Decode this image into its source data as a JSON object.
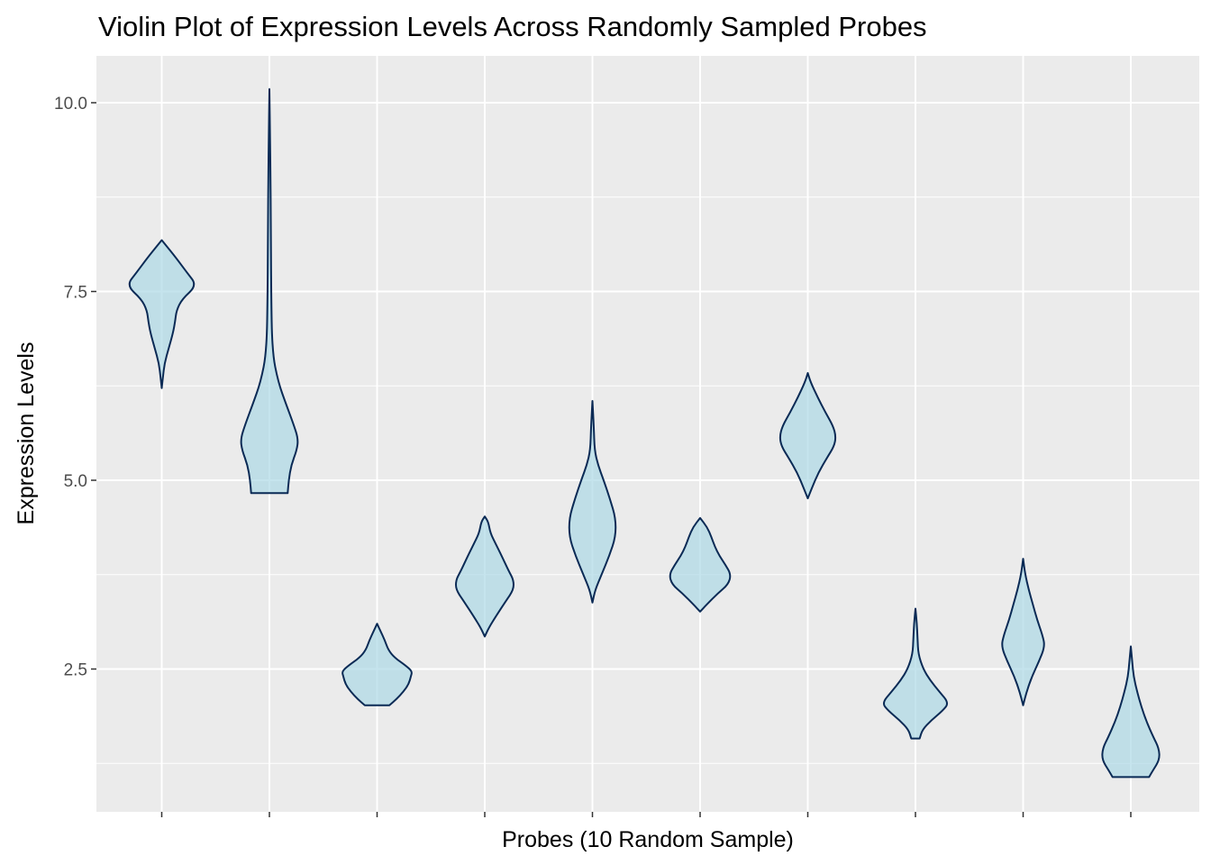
{
  "chart_data": {
    "type": "violin",
    "title": "Violin Plot of Expression Levels Across Randomly Sampled Probes",
    "xlabel": "Probes (10 Random Sample)",
    "ylabel": "Expression Levels",
    "x_tick_labels_shown": false,
    "ylim": [
      0.8,
      10.6
    ],
    "y_ticks": [
      2.5,
      5.0,
      7.5,
      10.0
    ],
    "y_tick_labels": [
      "2.5",
      "5.0",
      "7.5",
      "10.0"
    ],
    "y_minor_ticks": [
      1.25,
      3.75,
      6.25,
      8.75
    ],
    "grid": true,
    "legend": "none",
    "colors": {
      "panel_background": "#EBEBEB",
      "grid": "#FFFFFF",
      "violin_fill": "#ADD8E6",
      "violin_fill_opacity": 0.7,
      "violin_outline": "#0A2A55"
    },
    "violins": [
      {
        "index": 1,
        "min": 6.22,
        "max": 8.18,
        "profile": [
          [
            6.22,
            0.0
          ],
          [
            6.35,
            0.03
          ],
          [
            6.55,
            0.08
          ],
          [
            6.75,
            0.2
          ],
          [
            6.95,
            0.32
          ],
          [
            7.1,
            0.38
          ],
          [
            7.25,
            0.42
          ],
          [
            7.4,
            0.58
          ],
          [
            7.58,
            1.0
          ],
          [
            7.75,
            0.72
          ],
          [
            7.95,
            0.4
          ],
          [
            8.1,
            0.14
          ],
          [
            8.18,
            0.0
          ]
        ]
      },
      {
        "index": 2,
        "min": 4.83,
        "max": 10.18,
        "profile": [
          [
            4.83,
            0.52
          ],
          [
            5.0,
            0.55
          ],
          [
            5.2,
            0.62
          ],
          [
            5.4,
            0.78
          ],
          [
            5.55,
            0.82
          ],
          [
            5.75,
            0.68
          ],
          [
            6.0,
            0.48
          ],
          [
            6.3,
            0.25
          ],
          [
            6.7,
            0.08
          ],
          [
            7.5,
            0.05
          ],
          [
            8.5,
            0.04
          ],
          [
            9.0,
            0.03
          ],
          [
            9.5,
            0.02
          ],
          [
            10.18,
            0.0
          ]
        ]
      },
      {
        "index": 3,
        "min": 2.02,
        "max": 3.1,
        "profile": [
          [
            2.02,
            0.35
          ],
          [
            2.1,
            0.55
          ],
          [
            2.2,
            0.75
          ],
          [
            2.3,
            0.9
          ],
          [
            2.4,
            0.96
          ],
          [
            2.47,
            1.0
          ],
          [
            2.55,
            0.8
          ],
          [
            2.65,
            0.5
          ],
          [
            2.75,
            0.32
          ],
          [
            2.88,
            0.22
          ],
          [
            3.0,
            0.1
          ],
          [
            3.1,
            0.0
          ]
        ]
      },
      {
        "index": 4,
        "min": 2.93,
        "max": 4.52,
        "profile": [
          [
            2.93,
            0.0
          ],
          [
            3.05,
            0.12
          ],
          [
            3.2,
            0.32
          ],
          [
            3.4,
            0.6
          ],
          [
            3.55,
            0.82
          ],
          [
            3.68,
            0.82
          ],
          [
            3.8,
            0.68
          ],
          [
            4.0,
            0.48
          ],
          [
            4.15,
            0.32
          ],
          [
            4.3,
            0.16
          ],
          [
            4.45,
            0.1
          ],
          [
            4.52,
            0.0
          ]
        ]
      },
      {
        "index": 5,
        "min": 3.38,
        "max": 6.05,
        "profile": [
          [
            3.38,
            0.0
          ],
          [
            3.55,
            0.08
          ],
          [
            3.75,
            0.26
          ],
          [
            4.0,
            0.48
          ],
          [
            4.25,
            0.66
          ],
          [
            4.5,
            0.66
          ],
          [
            4.75,
            0.5
          ],
          [
            5.0,
            0.32
          ],
          [
            5.2,
            0.16
          ],
          [
            5.4,
            0.06
          ],
          [
            5.7,
            0.04
          ],
          [
            6.05,
            0.0
          ]
        ]
      },
      {
        "index": 6,
        "min": 3.26,
        "max": 4.5,
        "profile": [
          [
            3.26,
            0.0
          ],
          [
            3.35,
            0.18
          ],
          [
            3.5,
            0.5
          ],
          [
            3.62,
            0.8
          ],
          [
            3.75,
            0.88
          ],
          [
            3.88,
            0.72
          ],
          [
            4.0,
            0.55
          ],
          [
            4.12,
            0.42
          ],
          [
            4.25,
            0.32
          ],
          [
            4.38,
            0.2
          ],
          [
            4.5,
            0.0
          ]
        ]
      },
      {
        "index": 7,
        "min": 4.76,
        "max": 6.42,
        "profile": [
          [
            4.76,
            0.0
          ],
          [
            4.9,
            0.12
          ],
          [
            5.1,
            0.3
          ],
          [
            5.3,
            0.55
          ],
          [
            5.45,
            0.75
          ],
          [
            5.58,
            0.8
          ],
          [
            5.72,
            0.72
          ],
          [
            5.9,
            0.5
          ],
          [
            6.1,
            0.28
          ],
          [
            6.3,
            0.08
          ],
          [
            6.42,
            0.0
          ]
        ]
      },
      {
        "index": 8,
        "min": 1.58,
        "max": 3.3,
        "profile": [
          [
            1.58,
            0.12
          ],
          [
            1.7,
            0.2
          ],
          [
            1.82,
            0.45
          ],
          [
            1.95,
            0.78
          ],
          [
            2.05,
            0.95
          ],
          [
            2.2,
            0.68
          ],
          [
            2.35,
            0.42
          ],
          [
            2.5,
            0.22
          ],
          [
            2.7,
            0.08
          ],
          [
            2.9,
            0.06
          ],
          [
            3.1,
            0.04
          ],
          [
            3.3,
            0.0
          ]
        ]
      },
      {
        "index": 9,
        "min": 2.02,
        "max": 3.96,
        "profile": [
          [
            2.02,
            0.0
          ],
          [
            2.2,
            0.1
          ],
          [
            2.4,
            0.25
          ],
          [
            2.6,
            0.45
          ],
          [
            2.8,
            0.62
          ],
          [
            2.95,
            0.55
          ],
          [
            3.15,
            0.4
          ],
          [
            3.35,
            0.28
          ],
          [
            3.55,
            0.16
          ],
          [
            3.75,
            0.06
          ],
          [
            3.96,
            0.0
          ]
        ]
      },
      {
        "index": 10,
        "min": 1.07,
        "max": 2.8,
        "profile": [
          [
            1.07,
            0.52
          ],
          [
            1.15,
            0.62
          ],
          [
            1.3,
            0.82
          ],
          [
            1.45,
            0.8
          ],
          [
            1.6,
            0.64
          ],
          [
            1.8,
            0.45
          ],
          [
            2.0,
            0.3
          ],
          [
            2.2,
            0.18
          ],
          [
            2.4,
            0.08
          ],
          [
            2.6,
            0.04
          ],
          [
            2.8,
            0.0
          ]
        ]
      }
    ]
  }
}
